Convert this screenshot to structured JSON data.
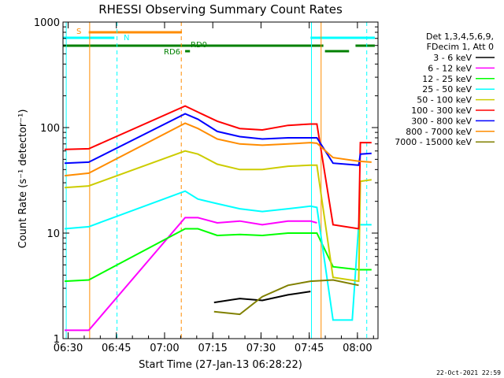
{
  "chart_data": {
    "type": "line",
    "title": "RHESSI Observing Summary Count Rates",
    "xlabel": "Start Time (27-Jan-13 06:28:22)",
    "ylabel": "Count Rate (s⁻¹ detector⁻¹)",
    "x_unit": "minutes after 06:28:22",
    "xlim": [
      0,
      98
    ],
    "ylim": [
      1,
      1000
    ],
    "yscale": "log",
    "x_ticks": [
      {
        "label": "06:30",
        "x": 1.6
      },
      {
        "label": "06:45",
        "x": 16.6
      },
      {
        "label": "07:00",
        "x": 31.6
      },
      {
        "label": "07:15",
        "x": 46.6
      },
      {
        "label": "07:30",
        "x": 61.6
      },
      {
        "label": "07:45",
        "x": 76.6
      },
      {
        "label": "08:00",
        "x": 91.6
      }
    ],
    "y_ticks": [
      {
        "label": "1",
        "y": 1
      },
      {
        "label": "10",
        "y": 10
      },
      {
        "label": "100",
        "y": 100
      },
      {
        "label": "1000",
        "y": 1000
      }
    ],
    "legend_header": [
      "Det 1,3,4,5,6,9,",
      "FDecim 1, Att 0"
    ],
    "legend_position": "right",
    "series": [
      {
        "name": "3 - 6 keV",
        "color": "#000000",
        "points": [
          [
            47,
            2.2
          ],
          [
            55,
            2.4
          ],
          [
            62,
            2.3
          ],
          [
            70,
            2.6
          ],
          [
            77,
            2.8
          ]
        ]
      },
      {
        "name": "6 - 12 keV",
        "color": "#ff00ff",
        "points": [
          [
            0.5,
            1.2
          ],
          [
            8,
            1.2
          ],
          [
            38,
            14
          ],
          [
            42,
            14
          ],
          [
            48,
            12.5
          ],
          [
            55,
            13
          ],
          [
            62,
            12
          ],
          [
            70,
            13
          ],
          [
            77,
            13
          ],
          [
            79,
            12.5
          ]
        ]
      },
      {
        "name": "12 - 25 keV",
        "color": "#00ff00",
        "points": [
          [
            0.5,
            3.5
          ],
          [
            8,
            3.6
          ],
          [
            38,
            11
          ],
          [
            42,
            11
          ],
          [
            48,
            9.5
          ],
          [
            55,
            9.7
          ],
          [
            62,
            9.5
          ],
          [
            70,
            10
          ],
          [
            77,
            10
          ],
          [
            79,
            10
          ],
          [
            84,
            4.8
          ],
          [
            92,
            4.5
          ],
          [
            96,
            4.5
          ]
        ]
      },
      {
        "name": "25 - 50 keV",
        "color": "#00ffff",
        "points": [
          [
            0.5,
            11
          ],
          [
            8,
            11.5
          ],
          [
            38,
            25
          ],
          [
            42,
            21
          ],
          [
            48,
            19
          ],
          [
            55,
            17
          ],
          [
            62,
            16
          ],
          [
            70,
            17
          ],
          [
            77,
            18
          ],
          [
            79,
            17.5
          ],
          [
            84,
            1.5
          ],
          [
            90,
            1.5
          ],
          [
            92,
            12
          ],
          [
            96,
            12
          ]
        ]
      },
      {
        "name": "50 - 100 keV",
        "color": "#cccc00",
        "points": [
          [
            0.5,
            27
          ],
          [
            8,
            28
          ],
          [
            38,
            60
          ],
          [
            42,
            56
          ],
          [
            48,
            45
          ],
          [
            55,
            40
          ],
          [
            62,
            40
          ],
          [
            70,
            43
          ],
          [
            77,
            44
          ],
          [
            79,
            44
          ],
          [
            84,
            3.8
          ],
          [
            92,
            3.5
          ],
          [
            92.5,
            31
          ],
          [
            96,
            32
          ]
        ]
      },
      {
        "name": "100 - 300 keV",
        "color": "#ff0000",
        "points": [
          [
            0.5,
            62
          ],
          [
            8,
            63
          ],
          [
            38,
            160
          ],
          [
            42,
            140
          ],
          [
            48,
            115
          ],
          [
            55,
            98
          ],
          [
            62,
            95
          ],
          [
            70,
            105
          ],
          [
            77,
            108
          ],
          [
            79,
            108
          ],
          [
            84,
            12
          ],
          [
            92,
            11
          ],
          [
            92.5,
            72
          ],
          [
            96,
            72
          ]
        ]
      },
      {
        "name": "300 - 800 keV",
        "color": "#0000ff",
        "points": [
          [
            0.5,
            46
          ],
          [
            8,
            47
          ],
          [
            38,
            135
          ],
          [
            42,
            120
          ],
          [
            48,
            92
          ],
          [
            55,
            82
          ],
          [
            62,
            78
          ],
          [
            70,
            80
          ],
          [
            77,
            80
          ],
          [
            79,
            80
          ],
          [
            84,
            46
          ],
          [
            92,
            44
          ],
          [
            92.5,
            56
          ],
          [
            96,
            57
          ]
        ]
      },
      {
        "name": "800 - 7000 keV",
        "color": "#ff8c00",
        "points": [
          [
            0.5,
            35
          ],
          [
            8,
            37
          ],
          [
            38,
            110
          ],
          [
            42,
            98
          ],
          [
            48,
            78
          ],
          [
            55,
            70
          ],
          [
            62,
            68
          ],
          [
            70,
            70
          ],
          [
            77,
            72
          ],
          [
            79,
            71
          ],
          [
            84,
            52
          ],
          [
            92,
            48
          ],
          [
            96,
            47
          ]
        ]
      },
      {
        "name": "7000 - 15000 keV",
        "color": "#808000",
        "points": [
          [
            47,
            1.8
          ],
          [
            55,
            1.7
          ],
          [
            62,
            2.5
          ],
          [
            70,
            3.2
          ],
          [
            77,
            3.5
          ],
          [
            84,
            3.6
          ],
          [
            92,
            3.2
          ]
        ]
      }
    ],
    "bar_labels": [
      {
        "label": "S",
        "color": "#ff8c00"
      },
      {
        "label": "N",
        "color": "#00ffff"
      },
      {
        "label": "RD0",
        "color": "#008000"
      },
      {
        "label": "RD6",
        "color": "#008000"
      }
    ],
    "footer_date": "22-Oct-2021 22:59"
  }
}
